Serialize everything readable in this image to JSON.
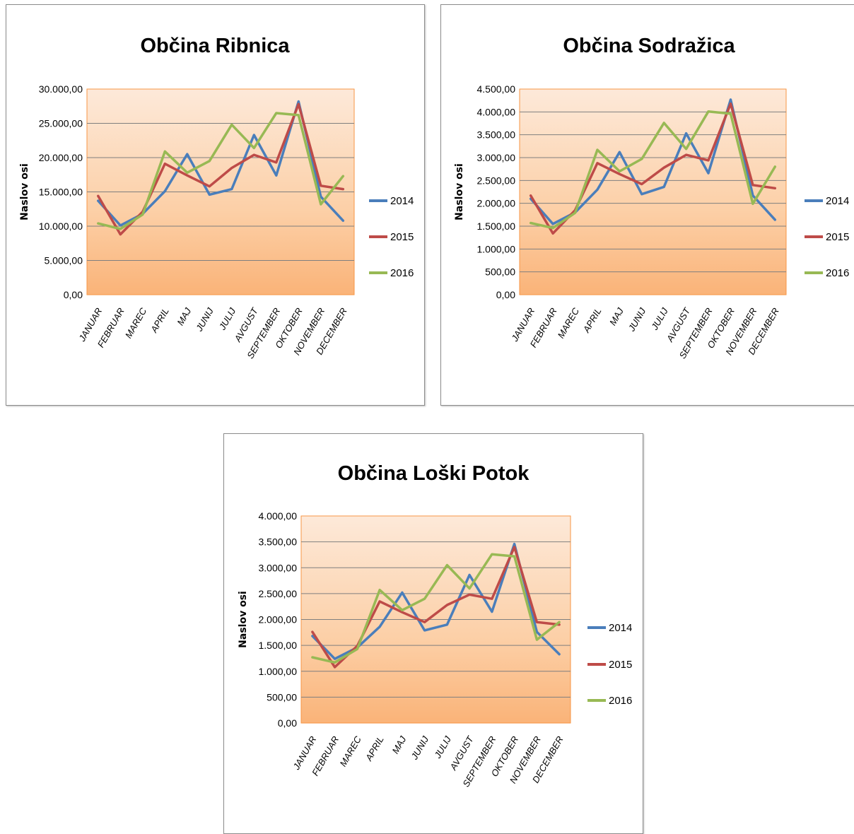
{
  "chart_data": [
    {
      "type": "line",
      "title": "Občina Ribnica",
      "ylabel": "Naslov osi",
      "xlabel": "",
      "categories": [
        "JANUAR",
        "FEBRUAR",
        "MAREC",
        "APRIL",
        "MAJ",
        "JUNIJ",
        "JULIJ",
        "AVGUST",
        "SEPTEMBER",
        "OKTOBER",
        "NOVEMBER",
        "DECEMBER"
      ],
      "ylim": [
        0,
        30000
      ],
      "yticks": [
        0,
        5000,
        10000,
        15000,
        20000,
        25000,
        30000
      ],
      "ytick_labels": [
        "0,00",
        "5.000,00",
        "10.000,00",
        "15.000,00",
        "20.000,00",
        "25.000,00",
        "30.000,00"
      ],
      "grid": true,
      "legend": "right",
      "series": [
        {
          "name": "2014",
          "color": "#4a7ebb",
          "values": [
            13700,
            10100,
            11800,
            15100,
            20500,
            14600,
            15400,
            23300,
            17400,
            28200,
            14300,
            10800
          ]
        },
        {
          "name": "2015",
          "color": "#be4b48",
          "values": [
            14400,
            8800,
            12100,
            19100,
            17400,
            15800,
            18500,
            20400,
            19300,
            27800,
            15900,
            15400
          ]
        },
        {
          "name": "2016",
          "color": "#98b954",
          "values": [
            10400,
            9600,
            11700,
            20900,
            17800,
            19500,
            24800,
            21400,
            26500,
            26200,
            13200,
            17300
          ]
        }
      ]
    },
    {
      "type": "line",
      "title": "Občina Sodražica",
      "ylabel": "Naslov osi",
      "xlabel": "",
      "categories": [
        "JANUAR",
        "FEBRUAR",
        "MAREC",
        "APRIL",
        "MAJ",
        "JUNIJ",
        "JULIJ",
        "AVGUST",
        "SEPTEMBER",
        "OKTOBER",
        "NOVEMBER",
        "DECEMBER"
      ],
      "ylim": [
        0,
        4500
      ],
      "yticks": [
        0,
        500,
        1000,
        1500,
        2000,
        2500,
        3000,
        3500,
        4000,
        4500
      ],
      "ytick_labels": [
        "0,00",
        "500,00",
        "1.000,00",
        "1.500,00",
        "2.000,00",
        "2.500,00",
        "3.000,00",
        "3.500,00",
        "4.000,00",
        "4.500,00"
      ],
      "grid": true,
      "legend": "right",
      "series": [
        {
          "name": "2014",
          "color": "#4a7ebb",
          "values": [
            2100,
            1550,
            1800,
            2300,
            3120,
            2200,
            2360,
            3530,
            2660,
            4270,
            2170,
            1640
          ]
        },
        {
          "name": "2015",
          "color": "#be4b48",
          "values": [
            2170,
            1340,
            1850,
            2880,
            2640,
            2420,
            2780,
            3060,
            2940,
            4180,
            2400,
            2330
          ]
        },
        {
          "name": "2016",
          "color": "#98b954",
          "values": [
            1570,
            1460,
            1790,
            3170,
            2700,
            2970,
            3760,
            3190,
            4010,
            3960,
            1990,
            2800
          ]
        }
      ]
    },
    {
      "type": "line",
      "title": "Občina Loški Potok",
      "ylabel": "Naslov osi",
      "xlabel": "",
      "categories": [
        "JANUAR",
        "FEBRUAR",
        "MAREC",
        "APRIL",
        "MAJ",
        "JUNIJ",
        "JULIJ",
        "AVGUST",
        "SEPTEMBER",
        "OKTOBER",
        "NOVEMBER",
        "DECEMBER"
      ],
      "ylim": [
        0,
        4000
      ],
      "yticks": [
        0,
        500,
        1000,
        1500,
        2000,
        2500,
        3000,
        3500,
        4000
      ],
      "ytick_labels": [
        "0,00",
        "500,00",
        "1.000,00",
        "1.500,00",
        "2.000,00",
        "2.500,00",
        "3.000,00",
        "3.500,00",
        "4.000,00"
      ],
      "grid": true,
      "legend": "right",
      "series": [
        {
          "name": "2014",
          "color": "#4a7ebb",
          "values": [
            1680,
            1240,
            1460,
            1860,
            2520,
            1790,
            1900,
            2860,
            2150,
            3460,
            1760,
            1330
          ]
        },
        {
          "name": "2015",
          "color": "#be4b48",
          "values": [
            1760,
            1080,
            1490,
            2350,
            2140,
            1950,
            2280,
            2480,
            2400,
            3400,
            1950,
            1900
          ]
        },
        {
          "name": "2016",
          "color": "#98b954",
          "values": [
            1270,
            1170,
            1430,
            2570,
            2180,
            2400,
            3050,
            2600,
            3260,
            3220,
            1610,
            1950
          ]
        }
      ]
    }
  ]
}
